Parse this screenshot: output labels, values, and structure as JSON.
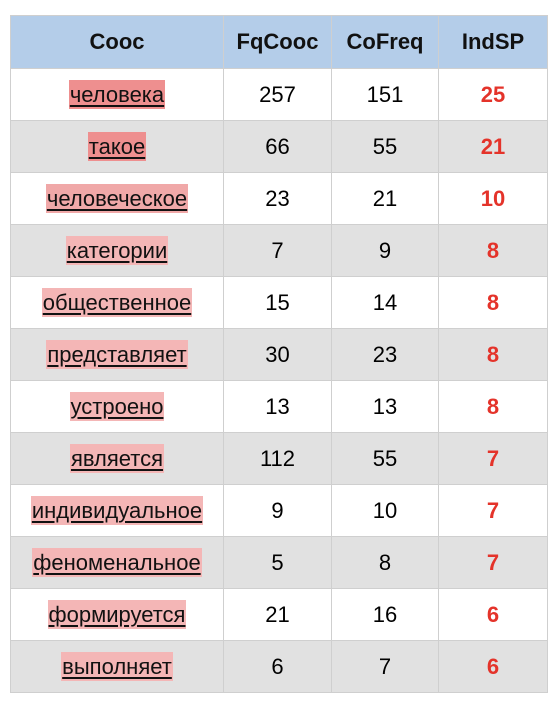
{
  "table": {
    "headers": [
      "Cooc",
      "FqCooc",
      "CoFreq",
      "IndSP"
    ],
    "rows": [
      {
        "word": "человека",
        "fq": "257",
        "cofreq": "151",
        "ind": "25",
        "shade": "w-strong"
      },
      {
        "word": "такое",
        "fq": "66",
        "cofreq": "55",
        "ind": "21",
        "shade": "w-strong"
      },
      {
        "word": "человеческое",
        "fq": "23",
        "cofreq": "21",
        "ind": "10",
        "shade": "w-mid"
      },
      {
        "word": "категории",
        "fq": "7",
        "cofreq": "9",
        "ind": "8",
        "shade": "w-light"
      },
      {
        "word": "общественное",
        "fq": "15",
        "cofreq": "14",
        "ind": "8",
        "shade": "w-light"
      },
      {
        "word": "представляет",
        "fq": "30",
        "cofreq": "23",
        "ind": "8",
        "shade": "w-light"
      },
      {
        "word": "устроено",
        "fq": "13",
        "cofreq": "13",
        "ind": "8",
        "shade": "w-light"
      },
      {
        "word": "является",
        "fq": "112",
        "cofreq": "55",
        "ind": "7",
        "shade": "w-light"
      },
      {
        "word": "индивидуальное",
        "fq": "9",
        "cofreq": "10",
        "ind": "7",
        "shade": "w-light"
      },
      {
        "word": "феноменальное",
        "fq": "5",
        "cofreq": "8",
        "ind": "7",
        "shade": "w-light"
      },
      {
        "word": "формируется",
        "fq": "21",
        "cofreq": "16",
        "ind": "6",
        "shade": "w-light"
      },
      {
        "word": "выполняет",
        "fq": "6",
        "cofreq": "7",
        "ind": "6",
        "shade": "w-light"
      }
    ]
  },
  "colors": {
    "header_bg": "#b4cde9",
    "row_alt_bg": "#e1e1e1",
    "indsp_text": "#e4332a",
    "word_highlight_strong": "#ee8f8f",
    "word_highlight_light": "#f4b6b6"
  }
}
